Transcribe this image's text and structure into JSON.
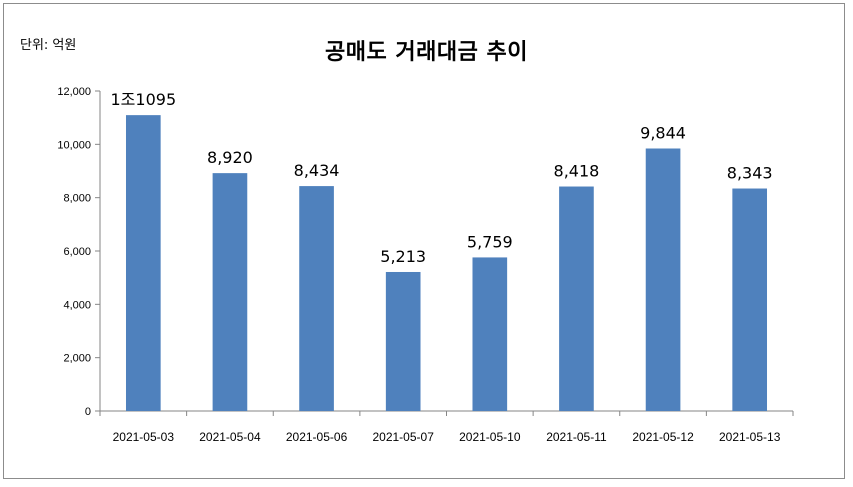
{
  "unit_label": "단위: 억원",
  "chart_data": {
    "type": "bar",
    "title": "공매도 거래대금 추이",
    "categories": [
      "2021-05-03",
      "2021-05-04",
      "2021-05-06",
      "2021-05-07",
      "2021-05-10",
      "2021-05-11",
      "2021-05-12",
      "2021-05-13"
    ],
    "values": [
      11095,
      8920,
      8434,
      5213,
      5759,
      8418,
      9844,
      8343
    ],
    "data_labels": [
      "1조1095",
      "8,920",
      "8,434",
      "5,213",
      "5,759",
      "8,418",
      "9,844",
      "8,343"
    ],
    "ylim": [
      0,
      12000
    ],
    "yticks": [
      0,
      2000,
      4000,
      6000,
      8000,
      10000,
      12000
    ],
    "ytick_labels": [
      "0",
      "2,000",
      "4,000",
      "6,000",
      "8,000",
      "10,000",
      "12,000"
    ],
    "xlabel": "",
    "ylabel": "",
    "grid": false,
    "bar_color": "#4f81bd"
  }
}
